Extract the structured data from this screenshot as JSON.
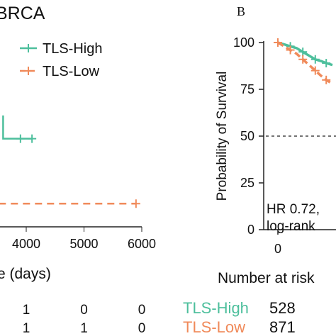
{
  "colors": {
    "high": "#4dbf9c",
    "low": "#f08a5a",
    "axis": "#222222",
    "ref": "#222222"
  },
  "panelA": {
    "title_fragment": "BRCA",
    "xlabel_fragment": "e (days)",
    "x_ticks": [
      "4000",
      "5000",
      "6000"
    ],
    "risk_values": [
      {
        "series": "TLS-High",
        "values": [
          "1",
          "0",
          "0"
        ]
      },
      {
        "series": "TLS-Low",
        "values": [
          "1",
          "1",
          "0"
        ]
      }
    ]
  },
  "panelB": {
    "label": "B",
    "ylabel": "Probability of Survival",
    "y_ticks": [
      "100",
      "75",
      "50",
      "25",
      "0"
    ],
    "x_ticks": [
      "0"
    ],
    "annotation_hr": "HR 0.72,",
    "annotation_logrank": "log-rank",
    "risk_header": "Number at risk",
    "risk_rows": [
      {
        "label": "TLS-High",
        "value": "528"
      },
      {
        "label": "TLS-Low",
        "value": "871"
      }
    ]
  },
  "chart_data": [
    {
      "type": "line",
      "panel": "A",
      "title": "BRCA",
      "xlabel": "Time (days)",
      "series": [
        {
          "name": "TLS-High",
          "x": [
            3600,
            3600,
            4100
          ],
          "y": [
            0.93,
            0.83,
            0.83
          ],
          "censor_x": [
            3900,
            4100
          ]
        },
        {
          "name": "TLS-Low",
          "x": [
            2900,
            5900
          ],
          "y": [
            0.55,
            0.55
          ],
          "censor_x": [
            2900,
            5900
          ]
        }
      ],
      "xlim": [
        2900,
        6200
      ],
      "legend": "top-right"
    },
    {
      "type": "line",
      "panel": "B",
      "ylabel": "Probability of Survival",
      "ylim": [
        0,
        100
      ],
      "series": [
        {
          "name": "TLS-High",
          "x": [
            0,
            80,
            160,
            240,
            320,
            400,
            480,
            560,
            620,
            700
          ],
          "y": [
            100,
            99,
            98,
            97,
            95,
            93,
            91,
            90,
            89,
            88
          ]
        },
        {
          "name": "TLS-Low",
          "x": [
            0,
            80,
            160,
            240,
            320,
            400,
            480,
            560,
            620,
            700
          ],
          "y": [
            100,
            98,
            96,
            94,
            91,
            88,
            85,
            82,
            80,
            78
          ]
        }
      ],
      "reference_line_y": 50
    }
  ]
}
